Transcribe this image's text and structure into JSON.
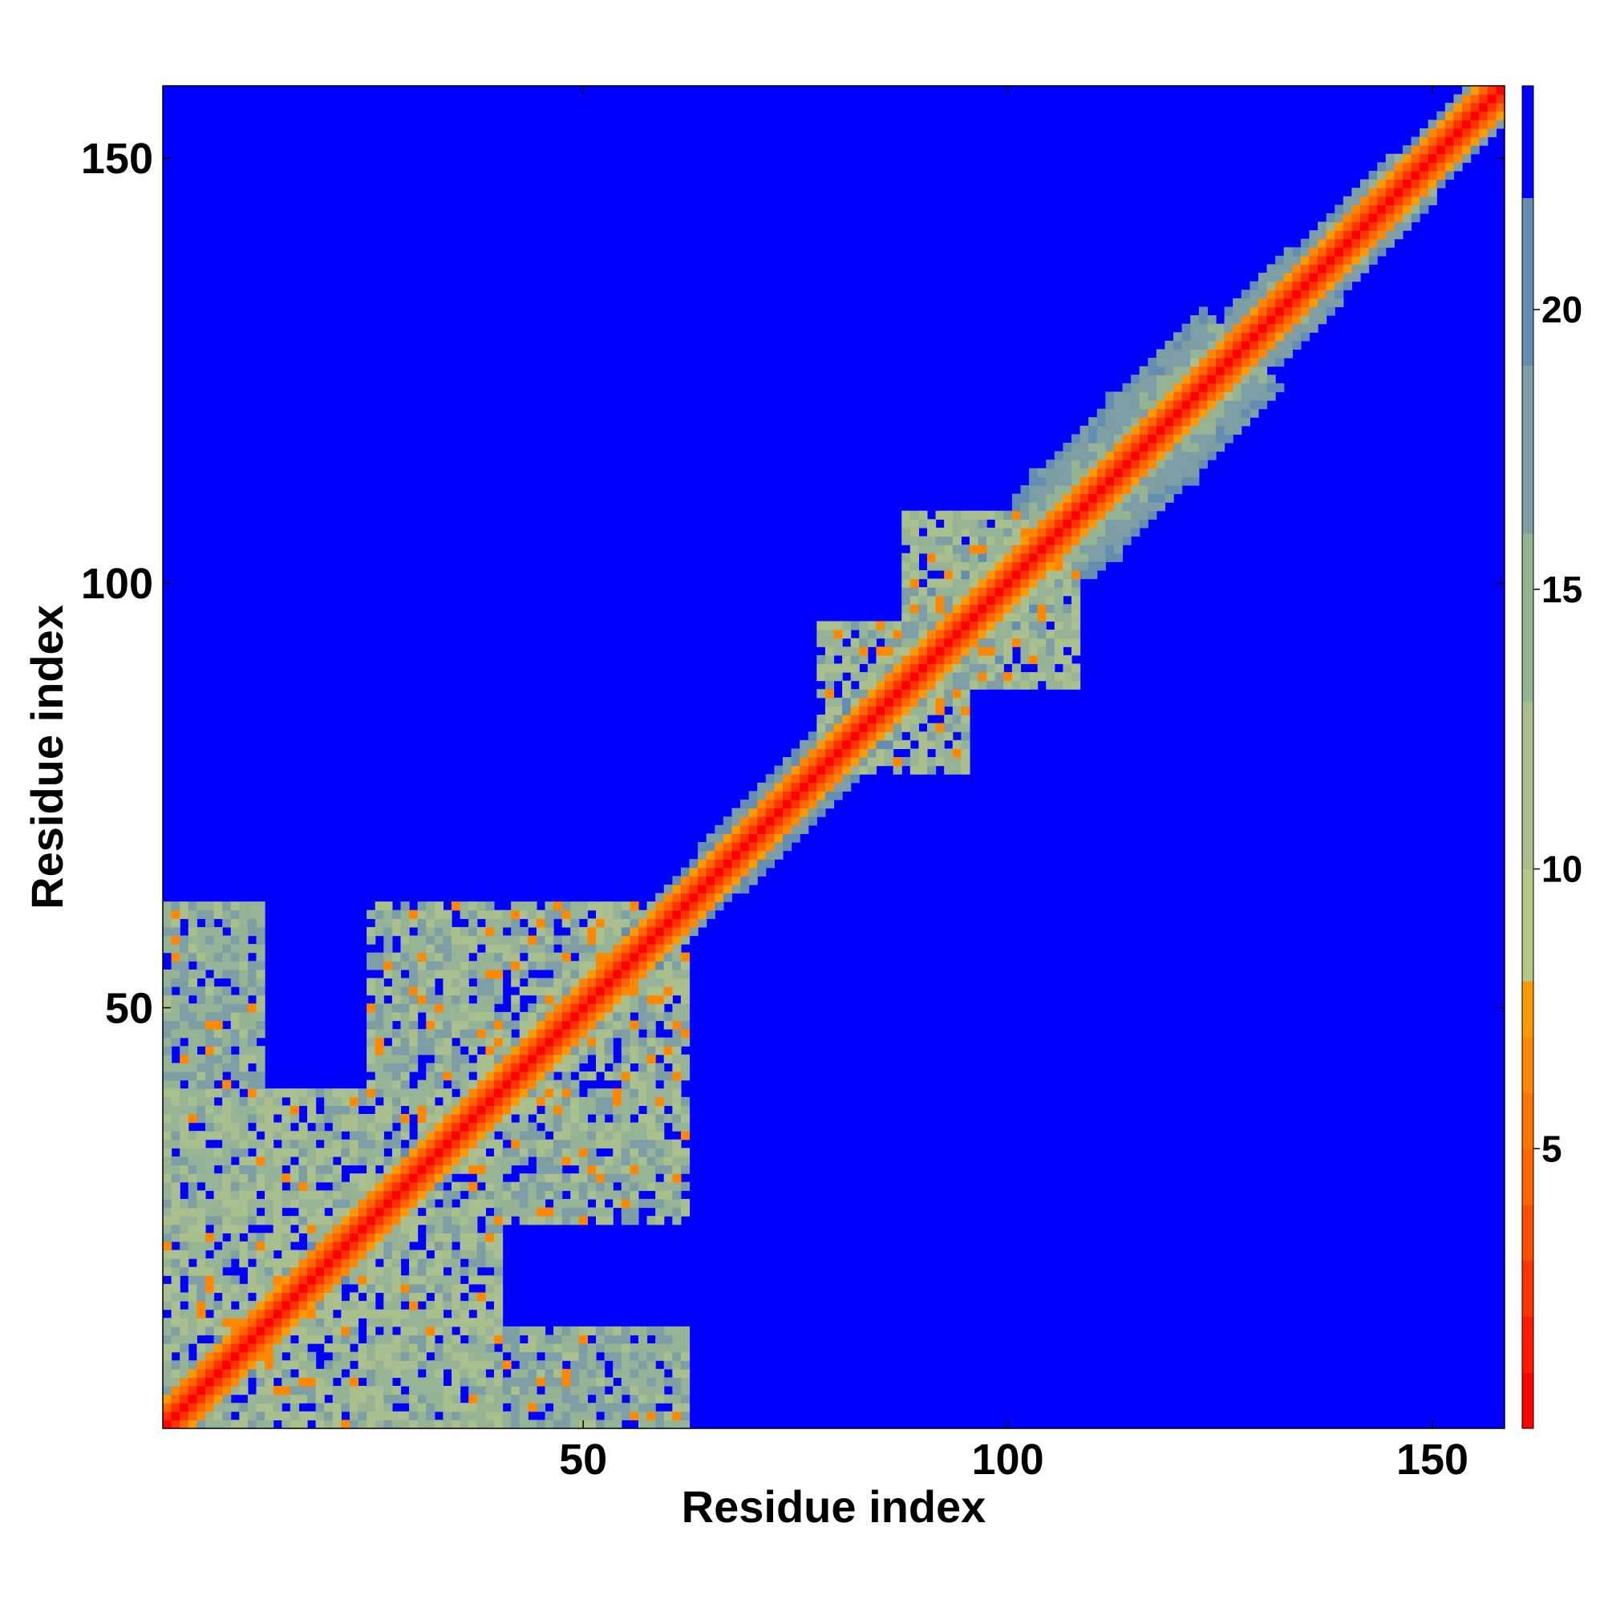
{
  "chart_data": {
    "type": "heatmap",
    "title": "",
    "xlabel": "Residue index",
    "ylabel": "Residue index",
    "xlim": [
      1,
      158
    ],
    "ylim": [
      1,
      158
    ],
    "x_ticks": [
      50,
      100,
      150
    ],
    "y_ticks": [
      50,
      100,
      150
    ],
    "grid": false,
    "colorbar": {
      "ticks": [
        5,
        10,
        15,
        20
      ],
      "vmin": 0,
      "vmax": 24,
      "color_bands": [
        {
          "from": 0,
          "to": 1,
          "color": "#ff0000"
        },
        {
          "from": 1,
          "to": 2,
          "color": "#ff1a00"
        },
        {
          "from": 2,
          "to": 3,
          "color": "#ff3300"
        },
        {
          "from": 3,
          "to": 4,
          "color": "#ff4d00"
        },
        {
          "from": 4,
          "to": 5,
          "color": "#ff6600"
        },
        {
          "from": 5,
          "to": 6,
          "color": "#ff7700"
        },
        {
          "from": 6,
          "to": 7,
          "color": "#ff8800"
        },
        {
          "from": 7,
          "to": 8,
          "color": "#ff9900"
        },
        {
          "from": 8,
          "to": 10,
          "color": "#b4c88a"
        },
        {
          "from": 10,
          "to": 13,
          "color": "#a9bf8d"
        },
        {
          "from": 13,
          "to": 16,
          "color": "#96b395"
        },
        {
          "from": 16,
          "to": 19,
          "color": "#7d9ea4"
        },
        {
          "from": 19,
          "to": 22,
          "color": "#648db2"
        },
        {
          "from": 22,
          "to": 24,
          "color": "#0000ff"
        }
      ]
    },
    "cell_values": "symmetric pairwise distance matrix between residues 1-158; near-diagonal cells 0-8 (red/orange), neighbouring band 8-22 (grey-green), distant pairs 22+ (blue)",
    "contact_blocks": [
      {
        "x": [
          1,
          40
        ],
        "y": [
          1,
          40
        ],
        "level": 12
      },
      {
        "x": [
          1,
          60
        ],
        "y": [
          1,
          20
        ],
        "level": 13
      },
      {
        "x": [
          25,
          62
        ],
        "y": [
          28,
          62
        ],
        "level": 13
      },
      {
        "x": [
          1,
          12
        ],
        "y": [
          40,
          62
        ],
        "level": 14
      },
      {
        "x": [
          78,
          95
        ],
        "y": [
          78,
          95
        ],
        "level": 12
      },
      {
        "x": [
          88,
          105
        ],
        "y": [
          88,
          108
        ],
        "level": 12
      }
    ]
  }
}
